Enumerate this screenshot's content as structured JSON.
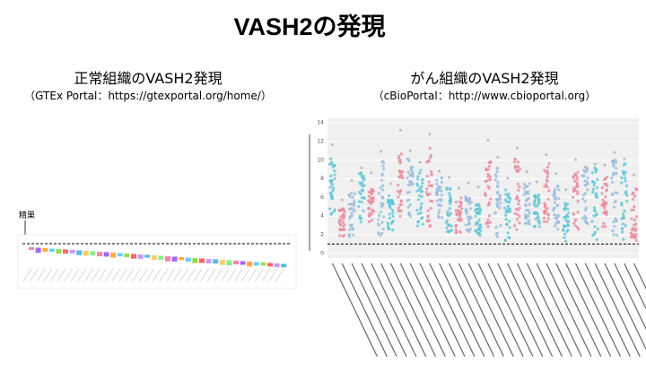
{
  "title": "VASH2の発現",
  "left": {
    "heading": "正常組織のVASH2発現",
    "source": "（GTEx Portal：https://gtexportal.org/home/）",
    "annotation": "精巣"
  },
  "right": {
    "heading": "がん組織のVASH2発現",
    "source": "（cBioPortal：http://www.cbioportal.org）",
    "chart_data": {
      "type": "scatter",
      "ylim": [
        -0.5,
        14.5
      ],
      "yticks": [
        0,
        2,
        4,
        6,
        8,
        10,
        12,
        14
      ],
      "reference_line": 1,
      "grid": true
    }
  }
}
